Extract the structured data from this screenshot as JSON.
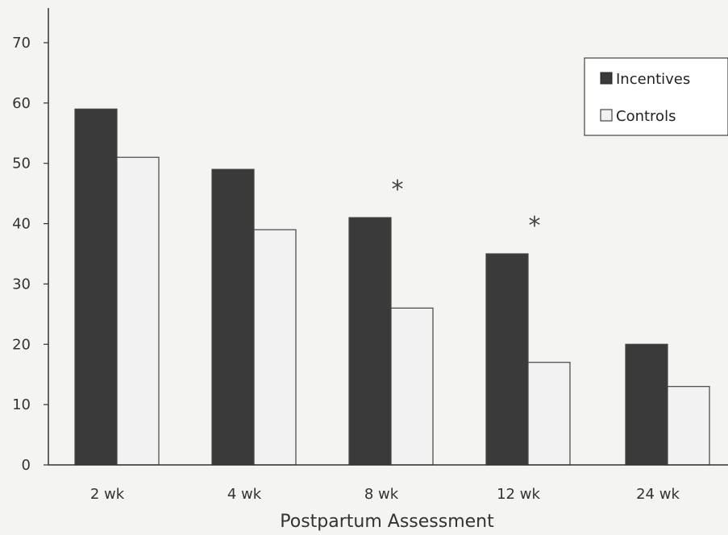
{
  "chart_data": {
    "type": "bar",
    "title": "",
    "xlabel": "Postpartum Assessment",
    "ylabel": "",
    "ylim": [
      0,
      70
    ],
    "yticks": [
      0,
      10,
      20,
      30,
      40,
      50,
      60,
      70
    ],
    "categories": [
      "2 wk",
      "4 wk",
      "8 wk",
      "12 wk",
      "24 wk"
    ],
    "series": [
      {
        "name": "Incentives",
        "values": [
          59,
          49,
          41,
          35,
          20
        ],
        "color": "#3a3a3a"
      },
      {
        "name": "Controls",
        "values": [
          51,
          39,
          26,
          17,
          13
        ],
        "color": "#f2f2f2"
      }
    ],
    "annotations": [
      {
        "category": "8 wk",
        "text": "*"
      },
      {
        "category": "12 wk",
        "text": "*"
      }
    ],
    "legend_position": "top-right",
    "grid": false
  }
}
